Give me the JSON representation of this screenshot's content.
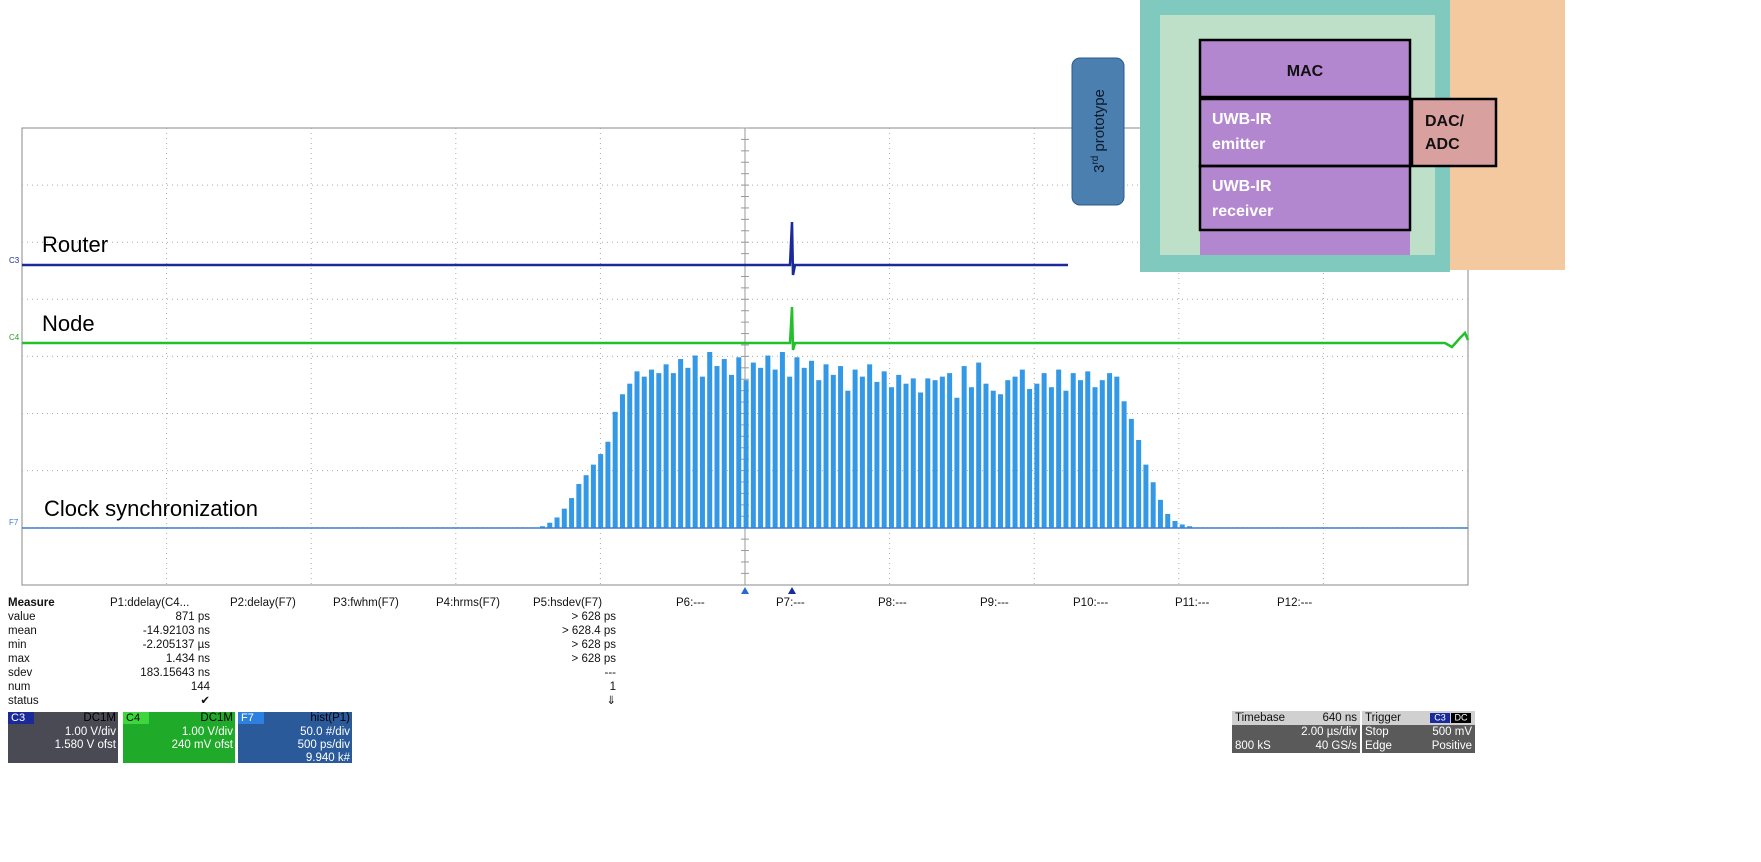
{
  "trace_labels": [
    "Router",
    "Node",
    "Clock synchronization"
  ],
  "trace_tags": [
    "C3",
    "C4",
    "F7"
  ],
  "histogram": {
    "color": "#3399e6",
    "values": [
      1,
      3,
      6,
      11,
      17,
      25,
      30,
      36,
      42,
      49,
      66,
      76,
      82,
      89,
      86,
      90,
      88,
      93,
      88,
      96,
      91,
      98,
      86,
      100,
      92,
      96,
      87,
      97,
      84,
      94,
      91,
      98,
      90,
      100,
      86,
      97,
      91,
      95,
      84,
      93,
      87,
      92,
      78,
      90,
      86,
      93,
      83,
      89,
      80,
      87,
      82,
      85,
      77,
      85,
      84,
      86,
      88,
      74,
      92,
      80,
      94,
      82,
      78,
      76,
      84,
      86,
      90,
      79,
      82,
      88,
      80,
      90,
      78,
      88,
      84,
      89,
      80,
      84,
      88,
      86,
      72,
      62,
      50,
      36,
      26,
      16,
      8,
      4,
      2,
      1
    ]
  },
  "measure": {
    "header": [
      "Measure",
      "P1:ddelay(C4...",
      "P2:delay(F7)",
      "P3:fwhm(F7)",
      "P4:hrms(F7)",
      "P5:hsdev(F7)",
      "P6:---",
      "P7:---",
      "P8:---",
      "P9:---",
      "P10:---",
      "P11:---",
      "P12:---"
    ],
    "rows": [
      {
        "label": "value",
        "p1": "871 ps",
        "p5": "> 628 ps"
      },
      {
        "label": "mean",
        "p1": "-14.92103 ns",
        "p5": "> 628.4 ps"
      },
      {
        "label": "min",
        "p1": "-2.205137 µs",
        "p5": "> 628 ps"
      },
      {
        "label": "max",
        "p1": "1.434 ns",
        "p5": "> 628 ps"
      },
      {
        "label": "sdev",
        "p1": "183.15643 ns",
        "p5": "---"
      },
      {
        "label": "num",
        "p1": "144",
        "p5": "1"
      },
      {
        "label": "status",
        "p1": "✔",
        "p5": "⇓"
      }
    ]
  },
  "channels": [
    {
      "tag": "C3",
      "coupling": "DC1M",
      "lines": [
        "1.00 V/div",
        "1.580 V ofst"
      ]
    },
    {
      "tag": "C4",
      "coupling": "DC1M",
      "lines": [
        "1.00 V/div",
        "240 mV ofst"
      ]
    },
    {
      "tag": "F7",
      "coupling": "hist(P1)",
      "lines": [
        "50.0 #/div",
        "500 ps/div",
        "9.940 k#"
      ]
    }
  ],
  "timebase": {
    "title": "Timebase",
    "delay": "640 ns",
    "scale": "2.00 µs/div",
    "samples": "800 kS",
    "rate": "40 GS/s"
  },
  "trigger": {
    "title": "Trigger",
    "source": "C3",
    "coupling": "DC",
    "mode": "Stop",
    "level": "500 mV",
    "type": "Edge",
    "slope": "Positive"
  },
  "chip": {
    "prototype": {
      "number": "3",
      "suffix": "rd",
      "word": "prototype"
    },
    "blocks": [
      [
        "MAC"
      ],
      [
        "UWB-IR",
        "emitter"
      ],
      [
        "UWB-IR",
        "receiver"
      ],
      [
        "DAC/",
        "ADC"
      ]
    ]
  }
}
